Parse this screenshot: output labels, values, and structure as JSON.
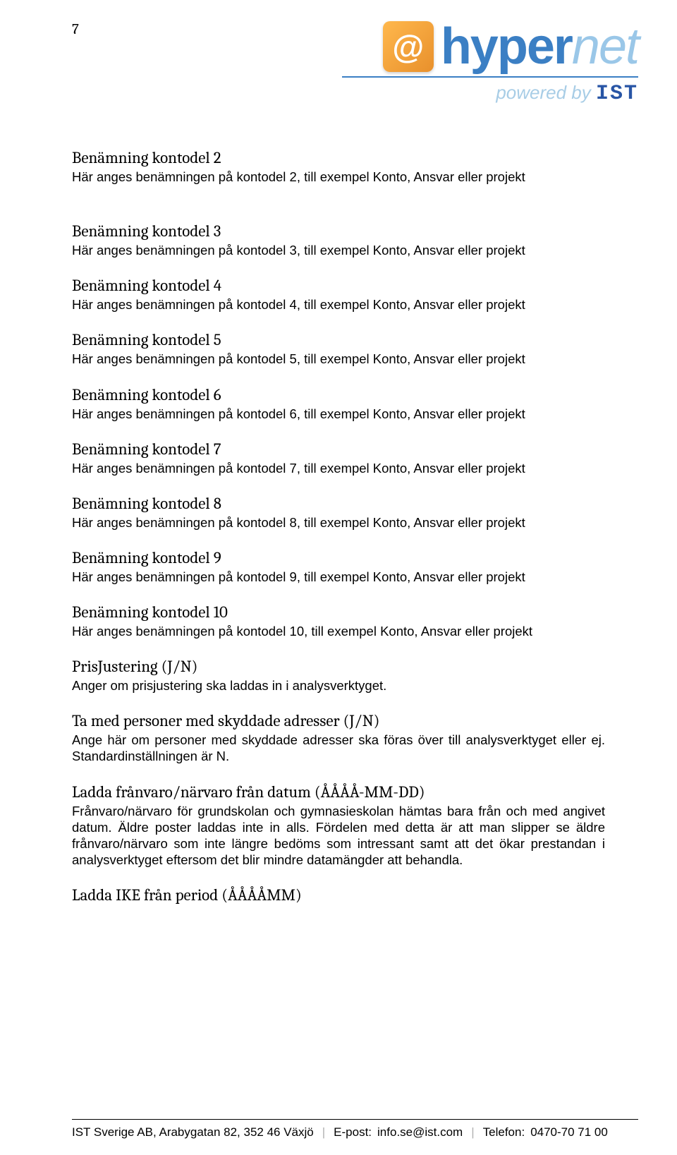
{
  "page_number": "7",
  "logo": {
    "word1": "hyper",
    "word2": "net",
    "powered": "powered by",
    "ist": "IST",
    "orange_start": "#ffb84d",
    "orange_end": "#e8902c",
    "blue_dark": "#3b7fc4",
    "blue_light": "#9ac7e8",
    "ist_color": "#2855a5"
  },
  "sections": [
    {
      "heading": "Benämning kontodel 2",
      "body": "Här anges benämningen på kontodel 2, till exempel Konto, Ansvar eller projekt"
    },
    {
      "heading": "Benämning kontodel 3",
      "body": "Här anges benämningen på kontodel 3, till exempel Konto, Ansvar eller projekt"
    },
    {
      "heading": "Benämning kontodel 4",
      "body": "Här anges benämningen på kontodel 4, till exempel Konto, Ansvar eller projekt"
    },
    {
      "heading": "Benämning kontodel 5",
      "body": "Här anges benämningen på kontodel 5, till exempel Konto, Ansvar eller projekt"
    },
    {
      "heading": "Benämning kontodel 6",
      "body": "Här anges benämningen på kontodel 6, till exempel Konto, Ansvar eller projekt"
    },
    {
      "heading": "Benämning kontodel 7",
      "body": "Här anges benämningen på kontodel 7, till exempel Konto, Ansvar eller projekt"
    },
    {
      "heading": "Benämning kontodel 8",
      "body": "Här anges benämningen på kontodel 8, till exempel Konto, Ansvar eller projekt"
    },
    {
      "heading": "Benämning kontodel 9",
      "body": "Här anges benämningen på kontodel 9, till exempel Konto, Ansvar eller projekt"
    },
    {
      "heading": "Benämning kontodel 10",
      "body": "Här anges benämningen på kontodel 10, till exempel Konto, Ansvar eller projekt"
    },
    {
      "heading": "PrisJustering (J/N)",
      "body": "Anger om prisjustering ska laddas in i analysverktyget."
    },
    {
      "heading": "Ta med personer med skyddade adresser (J/N)",
      "body": "Ange här om personer med skyddade adresser ska föras över till analysverktyget eller ej. Standardinställningen är N."
    },
    {
      "heading": "Ladda frånvaro/närvaro från datum (ÅÅÅÅ-MM-DD)",
      "body": "Frånvaro/närvaro för grundskolan och gymnasieskolan hämtas bara från och med angivet datum. Äldre poster laddas inte in alls. Fördelen med detta är att man slipper se äldre frånvaro/närvaro som inte längre bedöms som intressant samt att det ökar prestandan i analysverktyget eftersom det blir mindre datamängder att behandla."
    },
    {
      "heading": "Ladda IKE från period (ÅÅÅÅMM)",
      "body": ""
    }
  ],
  "gap_after_first": true,
  "footer": {
    "company": "IST Sverige AB, Arabygatan 82, 352 46 Växjö",
    "email_label": "E-post:",
    "email": "info.se@ist.com",
    "phone_label": "Telefon:",
    "phone": "0470-70 71 00"
  },
  "colors": {
    "text": "#000000",
    "background": "#ffffff",
    "separator": "#b0b0b0"
  },
  "fonts": {
    "heading_family": "Cambria",
    "heading_size_pt": 17,
    "body_family": "Arial",
    "body_size_pt": 14
  }
}
